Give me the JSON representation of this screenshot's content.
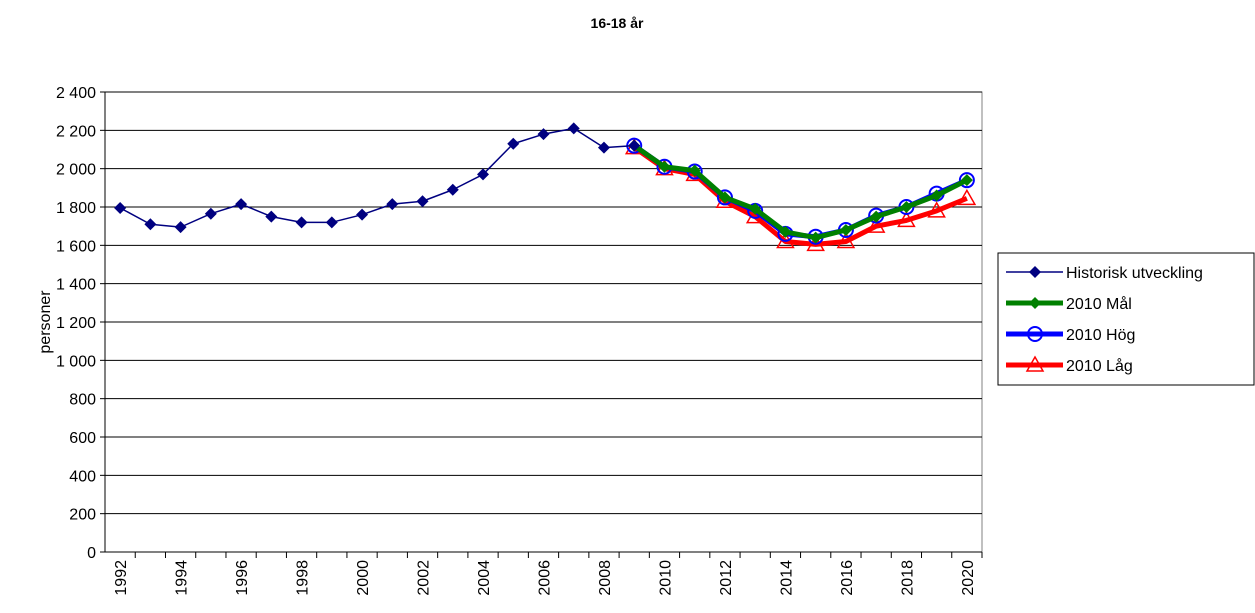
{
  "chart_data": {
    "type": "line",
    "title": "16-18 år",
    "y_label": "personer",
    "categories": [
      "1992",
      null,
      "1994",
      null,
      "1996",
      null,
      "1998",
      null,
      "2000",
      null,
      "2002",
      null,
      "2004",
      null,
      "2006",
      null,
      "2008",
      null,
      "2010",
      null,
      "2012",
      null,
      "2014",
      null,
      "2016",
      null,
      "2018",
      null,
      "2020"
    ],
    "series": [
      {
        "name": "Historisk utveckling",
        "color": "#000080",
        "marker": "diamond",
        "line_width": 1.5,
        "values": [
          1795,
          1710,
          1695,
          1765,
          1815,
          1750,
          1720,
          1720,
          1760,
          1815,
          1830,
          1890,
          1970,
          2130,
          2180,
          2210,
          2110,
          2120,
          null,
          null,
          null,
          null,
          null,
          null,
          null,
          null,
          null,
          null,
          null
        ]
      },
      {
        "name": "2010 Mål",
        "color": "#008000",
        "marker": "diamond",
        "line_width": 5,
        "values": [
          null,
          null,
          null,
          null,
          null,
          null,
          null,
          null,
          null,
          null,
          null,
          null,
          null,
          null,
          null,
          null,
          null,
          2120,
          2010,
          1990,
          1850,
          1790,
          1670,
          1640,
          1680,
          1750,
          1800,
          1860,
          1940
        ]
      },
      {
        "name": "2010 Hög",
        "color": "#0000ff",
        "marker": "circle",
        "line_width": 5,
        "values": [
          null,
          null,
          null,
          null,
          null,
          null,
          null,
          null,
          null,
          null,
          null,
          null,
          null,
          null,
          null,
          null,
          null,
          2120,
          2010,
          1985,
          1850,
          1780,
          1660,
          1645,
          1680,
          1755,
          1800,
          1870,
          1940
        ]
      },
      {
        "name": "2010 Låg",
        "color": "#ff0000",
        "marker": "triangle",
        "line_width": 5,
        "values": [
          null,
          null,
          null,
          null,
          null,
          null,
          null,
          null,
          null,
          null,
          null,
          null,
          null,
          null,
          null,
          null,
          null,
          2110,
          2000,
          1970,
          1830,
          1750,
          1620,
          1605,
          1620,
          1700,
          1730,
          1780,
          1845
        ]
      }
    ],
    "ylim": [
      0,
      2400
    ],
    "yticks": [
      0,
      200,
      400,
      600,
      800,
      {
        "value": 1000,
        "label": "1 000"
      },
      {
        "value": 1200,
        "label": "1 200"
      },
      {
        "value": 1400,
        "label": "1 400"
      },
      {
        "value": 1600,
        "label": "1 600"
      },
      {
        "value": 1800,
        "label": "1 800"
      },
      {
        "value": 2000,
        "label": "2 000"
      },
      {
        "value": 2200,
        "label": "2 200"
      },
      {
        "value": 2400,
        "label": "2 400"
      }
    ],
    "grid": true,
    "legend": "right"
  }
}
